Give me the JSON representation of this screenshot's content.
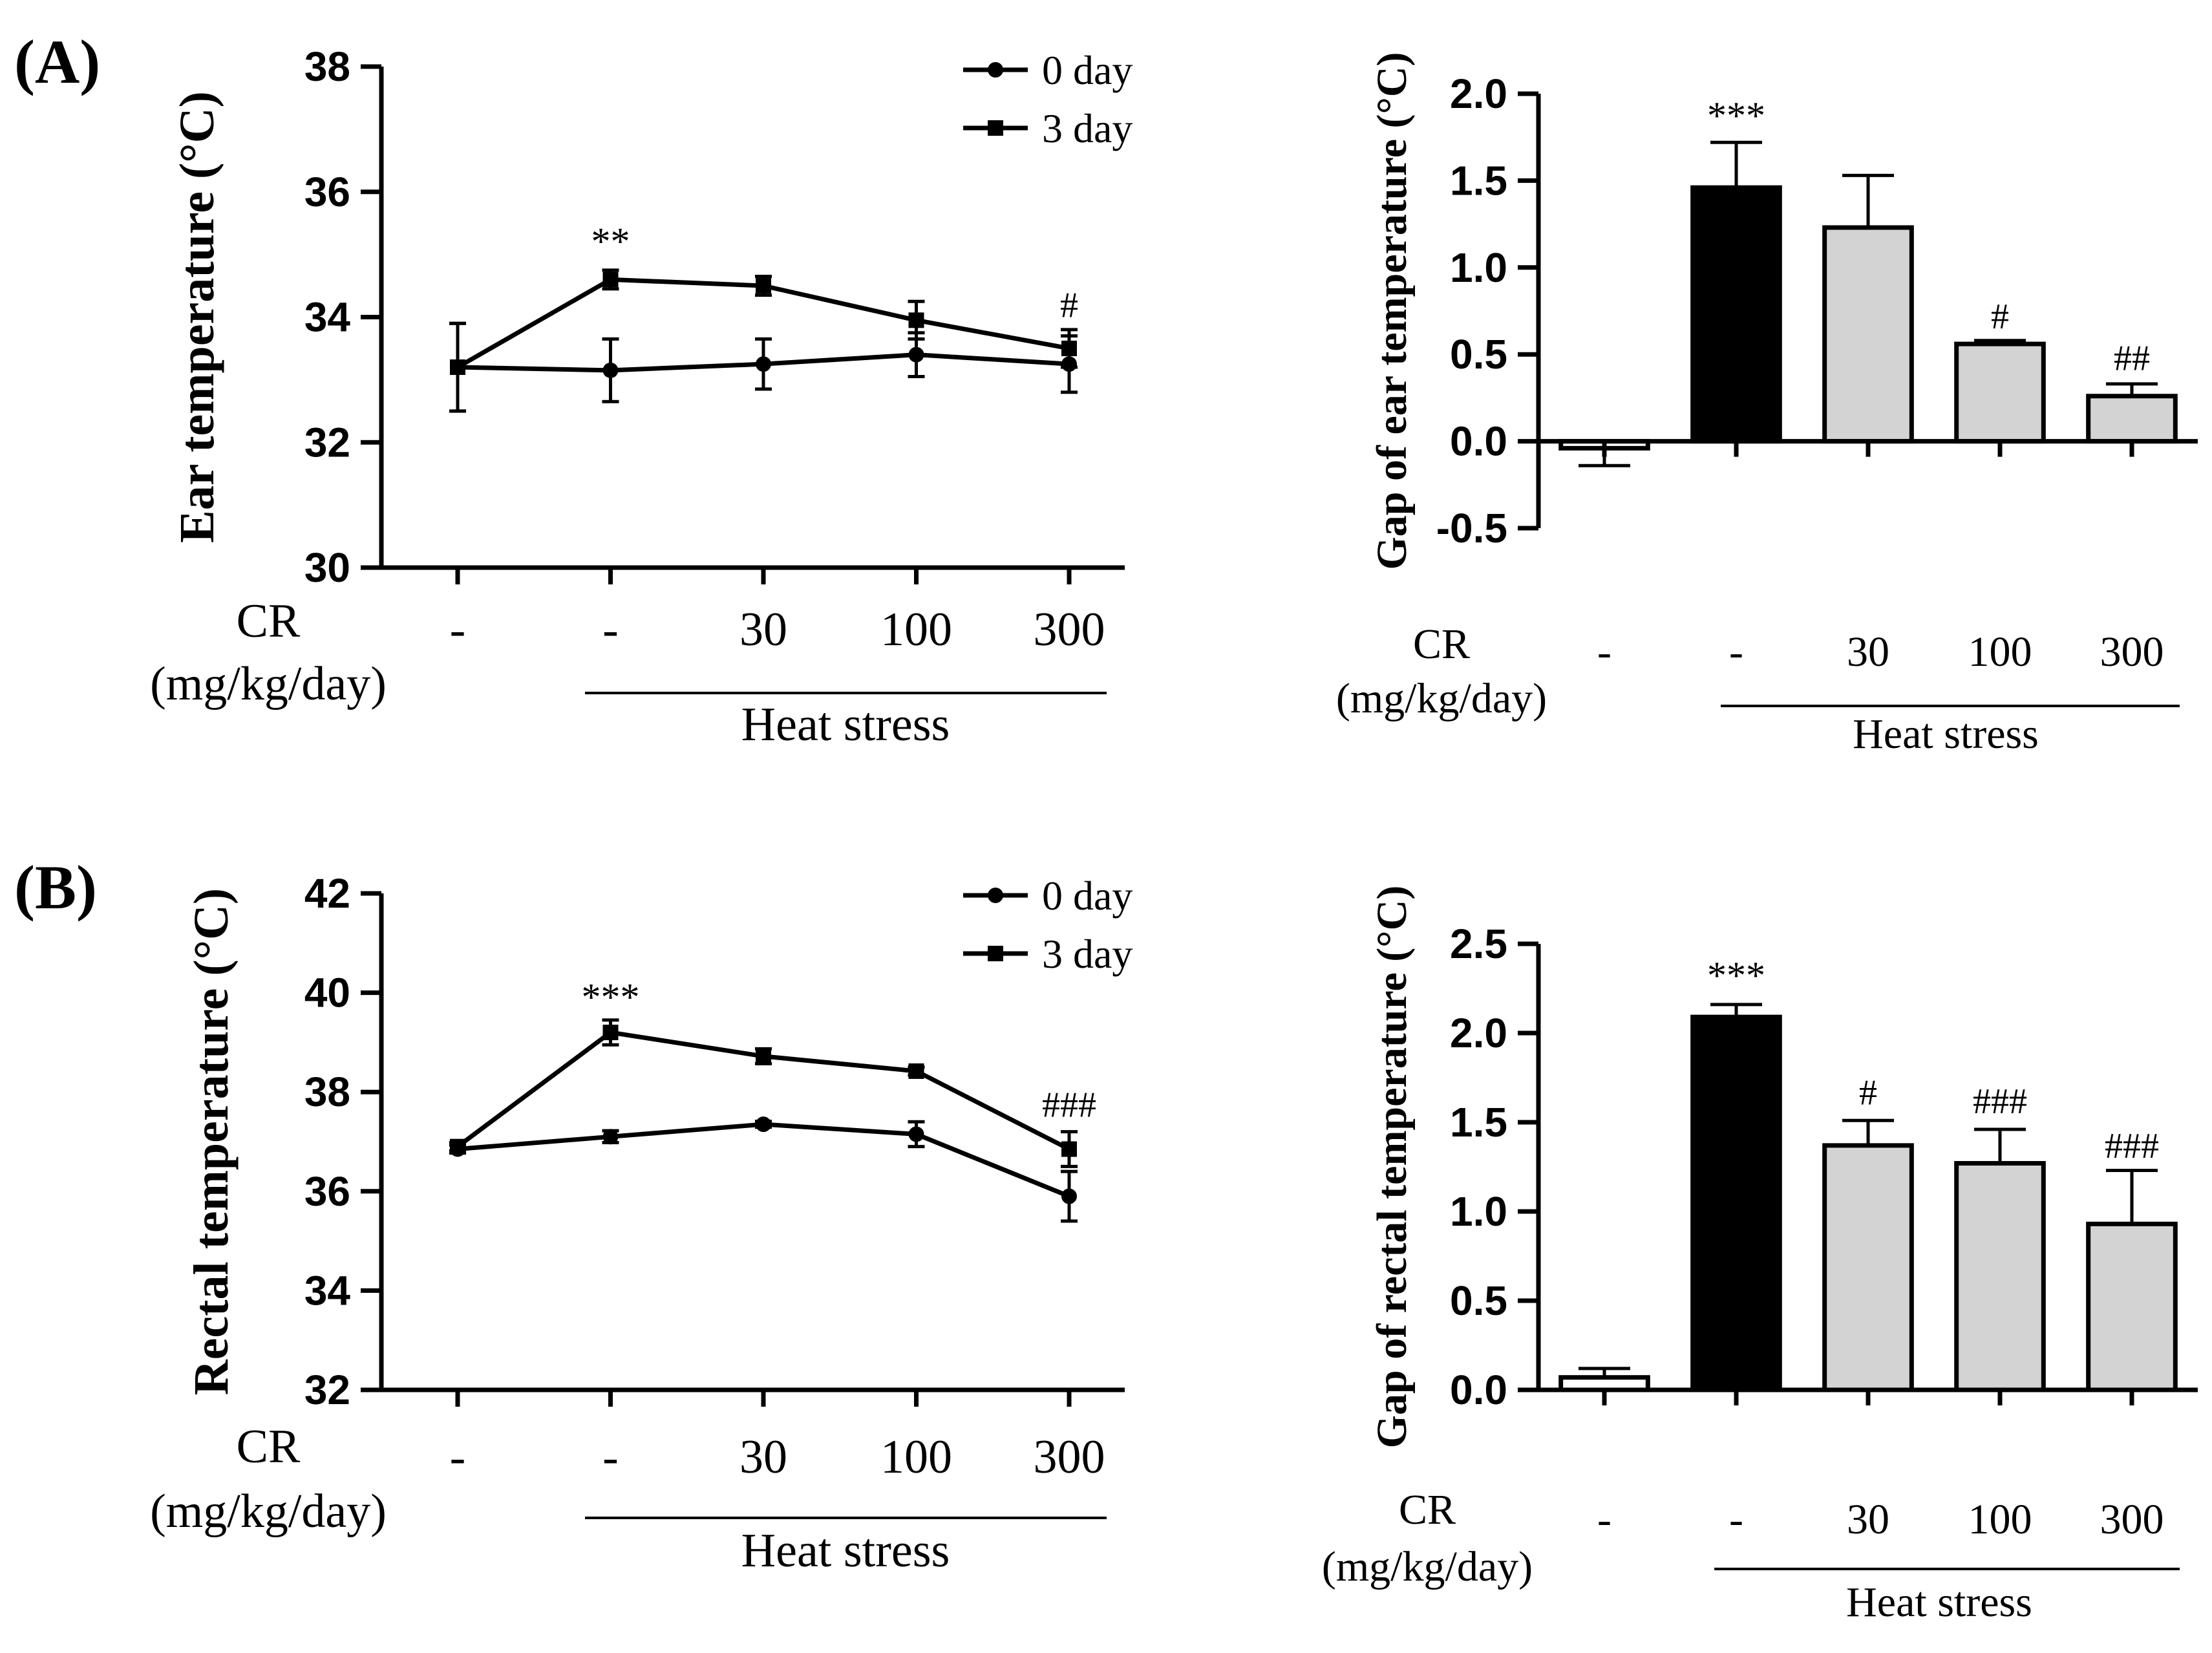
{
  "figure": {
    "panel_a_label": "(A)",
    "panel_b_label": "(B)"
  },
  "chart_data": [
    {
      "id": "a_line",
      "type": "line",
      "panel": "(A)",
      "title": "",
      "xlabel": "",
      "ylabel": "Ear temperature (°C)",
      "ylim": [
        30,
        38
      ],
      "yticks": [
        "30",
        "32",
        "34",
        "36",
        "38"
      ],
      "ytick_values": [
        30,
        32,
        34,
        36,
        38
      ],
      "categories": [
        "-",
        "-",
        "30",
        "100",
        "300"
      ],
      "category_header": "CR",
      "category_unit": "(mg/kg/day)",
      "group_label": "Heat stress",
      "grid": false,
      "legend_position": "top-right",
      "series": [
        {
          "name": "0 day",
          "marker": "circle",
          "values": [
            33.2,
            33.15,
            33.25,
            33.4,
            33.25
          ],
          "errors": [
            0.7,
            0.5,
            0.4,
            0.35,
            0.45
          ]
        },
        {
          "name": "3 day",
          "marker": "square",
          "values": [
            33.2,
            34.6,
            34.5,
            33.95,
            33.5
          ],
          "errors": [
            0.7,
            0.15,
            0.15,
            0.3,
            0.3
          ]
        }
      ],
      "annotations": [
        {
          "text": "**",
          "category_index": 1,
          "value": 35.0,
          "style": "star"
        },
        {
          "text": "#",
          "category_index": 4,
          "value": 34.0,
          "style": "hash"
        }
      ]
    },
    {
      "id": "a_bar",
      "type": "bar",
      "panel": "(A)",
      "title": "",
      "xlabel": "",
      "ylabel": "Gap of ear temperature (°C)",
      "ylim": [
        -0.5,
        2.0
      ],
      "yticks": [
        "-0.5",
        "0.0",
        "0.5",
        "1.0",
        "1.5",
        "2.0"
      ],
      "ytick_values": [
        -0.5,
        0.0,
        0.5,
        1.0,
        1.5,
        2.0
      ],
      "categories": [
        "-",
        "-",
        "30",
        "100",
        "300"
      ],
      "category_header": "CR",
      "category_unit": "(mg/kg/day)",
      "group_label": "Heat stress",
      "grid": false,
      "values": [
        -0.04,
        1.46,
        1.23,
        0.56,
        0.26
      ],
      "errors": [
        0.1,
        0.26,
        0.3,
        0.02,
        0.07
      ],
      "bar_colors": [
        "#ffffff",
        "#000000",
        "#d3d3d3",
        "#d3d3d3",
        "#d3d3d3"
      ],
      "annotations": [
        {
          "text": "***",
          "category_index": 1,
          "value": 1.8,
          "style": "star"
        },
        {
          "text": "#",
          "category_index": 3,
          "value": 0.65,
          "style": "hash"
        },
        {
          "text": "##",
          "category_index": 4,
          "value": 0.41,
          "style": "hash"
        }
      ]
    },
    {
      "id": "b_line",
      "type": "line",
      "panel": "(B)",
      "title": "",
      "xlabel": "",
      "ylabel": "Rectal temperature (°C)",
      "ylim": [
        32,
        42
      ],
      "yticks": [
        "32",
        "34",
        "36",
        "38",
        "40",
        "42"
      ],
      "ytick_values": [
        32,
        34,
        36,
        38,
        40,
        42
      ],
      "categories": [
        "-",
        "-",
        "30",
        "100",
        "300"
      ],
      "category_header": "CR",
      "category_unit": "(mg/kg/day)",
      "group_label": "Heat stress",
      "grid": false,
      "legend_position": "top-right",
      "series": [
        {
          "name": "0 day",
          "marker": "circle",
          "values": [
            36.85,
            37.1,
            37.35,
            37.15,
            35.9
          ],
          "errors": [
            0.08,
            0.12,
            0.06,
            0.25,
            0.5
          ]
        },
        {
          "name": "3 day",
          "marker": "square",
          "values": [
            36.9,
            39.2,
            38.72,
            38.42,
            36.85
          ],
          "errors": [
            0.08,
            0.25,
            0.15,
            0.08,
            0.35
          ]
        }
      ],
      "annotations": [
        {
          "text": "***",
          "category_index": 1,
          "value": 39.65,
          "style": "star"
        },
        {
          "text": "###",
          "category_index": 4,
          "value": 37.5,
          "style": "hash"
        }
      ]
    },
    {
      "id": "b_bar",
      "type": "bar",
      "panel": "(B)",
      "title": "",
      "xlabel": "",
      "ylabel": "Gap of rectal temperature (°C)",
      "ylim": [
        0.0,
        2.5
      ],
      "yticks": [
        "0.0",
        "0.5",
        "1.0",
        "1.5",
        "2.0",
        "2.5"
      ],
      "ytick_values": [
        0.0,
        0.5,
        1.0,
        1.5,
        2.0,
        2.5
      ],
      "categories": [
        "-",
        "-",
        "30",
        "100",
        "300"
      ],
      "category_header": "CR",
      "category_unit": "(mg/kg/day)",
      "group_label": "Heat stress",
      "grid": false,
      "values": [
        0.07,
        2.09,
        1.37,
        1.27,
        0.93
      ],
      "errors": [
        0.05,
        0.07,
        0.14,
        0.19,
        0.3
      ],
      "bar_colors": [
        "#ffffff",
        "#000000",
        "#d3d3d3",
        "#d3d3d3",
        "#d3d3d3"
      ],
      "annotations": [
        {
          "text": "***",
          "category_index": 1,
          "value": 2.25,
          "style": "star"
        },
        {
          "text": "#",
          "category_index": 2,
          "value": 1.6,
          "style": "hash"
        },
        {
          "text": "###",
          "category_index": 3,
          "value": 1.55,
          "style": "hash"
        },
        {
          "text": "###",
          "category_index": 4,
          "value": 1.3,
          "style": "hash"
        }
      ]
    }
  ]
}
